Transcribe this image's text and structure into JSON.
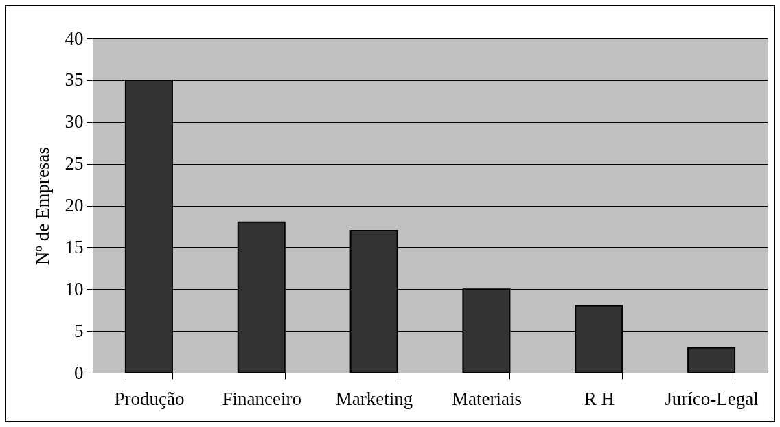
{
  "chart_data": {
    "type": "bar",
    "ylabel": "Nº de Empresas",
    "categories": [
      "Produção",
      "Financeiro",
      "Marketing",
      "Materiais",
      "R H",
      "Juríco-Legal"
    ],
    "values": [
      35,
      18,
      17,
      10,
      8,
      3
    ],
    "color": "#333333",
    "ylim": [
      0,
      40
    ],
    "yticks": [
      0,
      5,
      10,
      15,
      20,
      25,
      30,
      35,
      40
    ],
    "grid": "y"
  }
}
